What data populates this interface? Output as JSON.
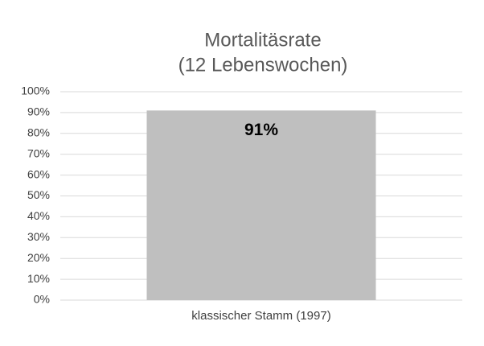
{
  "chart_data": {
    "type": "bar",
    "title": [
      "Mortalitäsrate",
      "(12 Lebenswochen)"
    ],
    "categories": [
      "klassischer Stamm (1997)"
    ],
    "values": [
      91
    ],
    "value_labels": [
      "91%"
    ],
    "color": "#bfbfbf",
    "ylim": [
      0,
      100
    ],
    "yticks": [
      {
        "value": 0,
        "label": "0%"
      },
      {
        "value": 10,
        "label": "10%"
      },
      {
        "value": 20,
        "label": "20%"
      },
      {
        "value": 30,
        "label": "30%"
      },
      {
        "value": 40,
        "label": "40%"
      },
      {
        "value": 50,
        "label": "50%"
      },
      {
        "value": 60,
        "label": "60%"
      },
      {
        "value": 70,
        "label": "70%"
      },
      {
        "value": 80,
        "label": "80%"
      },
      {
        "value": 90,
        "label": "90%"
      },
      {
        "value": 100,
        "label": "100%"
      }
    ],
    "grid": true
  }
}
